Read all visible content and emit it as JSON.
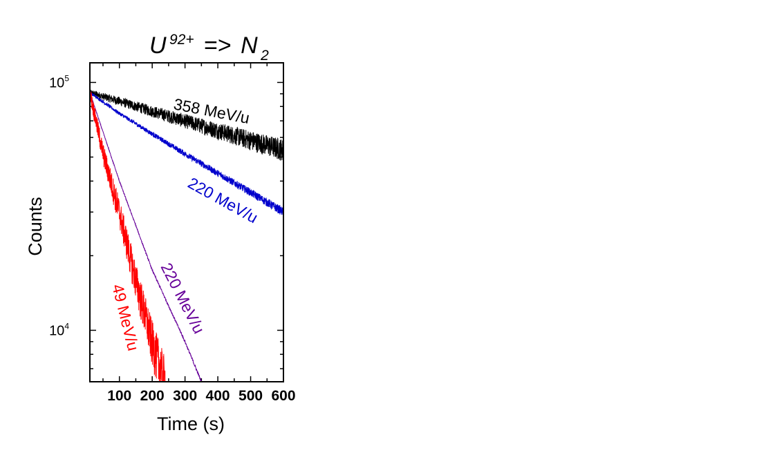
{
  "chart_data": {
    "type": "line",
    "title": {
      "base": "U",
      "superscript": "92+",
      "arrow": " => ",
      "target": "N",
      "subscript": "2"
    },
    "xlabel": "Time (s)",
    "ylabel": "Counts",
    "xlim": [
      10,
      600
    ],
    "ylim": [
      6200,
      120000
    ],
    "yscale": "log",
    "x_ticks": [
      100,
      200,
      300,
      400,
      500,
      600
    ],
    "y_ticks": [
      {
        "value": 10000,
        "base": "10",
        "exp": "4"
      },
      {
        "value": 100000,
        "base": "10",
        "exp": "5"
      }
    ],
    "grid": false,
    "legend": "none",
    "series": [
      {
        "label": "358 MeV/u",
        "color": "#000000",
        "x": [
          10,
          100,
          200,
          300,
          400,
          500,
          600
        ],
        "y": [
          91000,
          84000,
          76500,
          70000,
          64000,
          58500,
          53500
        ],
        "noise": 0.03
      },
      {
        "label": "220 MeV/u",
        "color": "#0000cc",
        "x": [
          10,
          100,
          200,
          300,
          400,
          500,
          600
        ],
        "y": [
          91000,
          75000,
          62000,
          51500,
          43000,
          36000,
          30000
        ],
        "noise": 0.012
      },
      {
        "label": "220 MeV/u",
        "color": "#660099",
        "x": [
          10,
          100,
          200,
          300,
          350
        ],
        "y": [
          91000,
          40000,
          17500,
          9000,
          6200
        ],
        "noise": 0.004
      },
      {
        "label": "49 MeV/u",
        "color": "#ff0000",
        "x": [
          10,
          50,
          100,
          150,
          200,
          240
        ],
        "y": [
          91000,
          52000,
          30000,
          16000,
          9000,
          6200
        ],
        "noise": 0.07
      }
    ]
  }
}
